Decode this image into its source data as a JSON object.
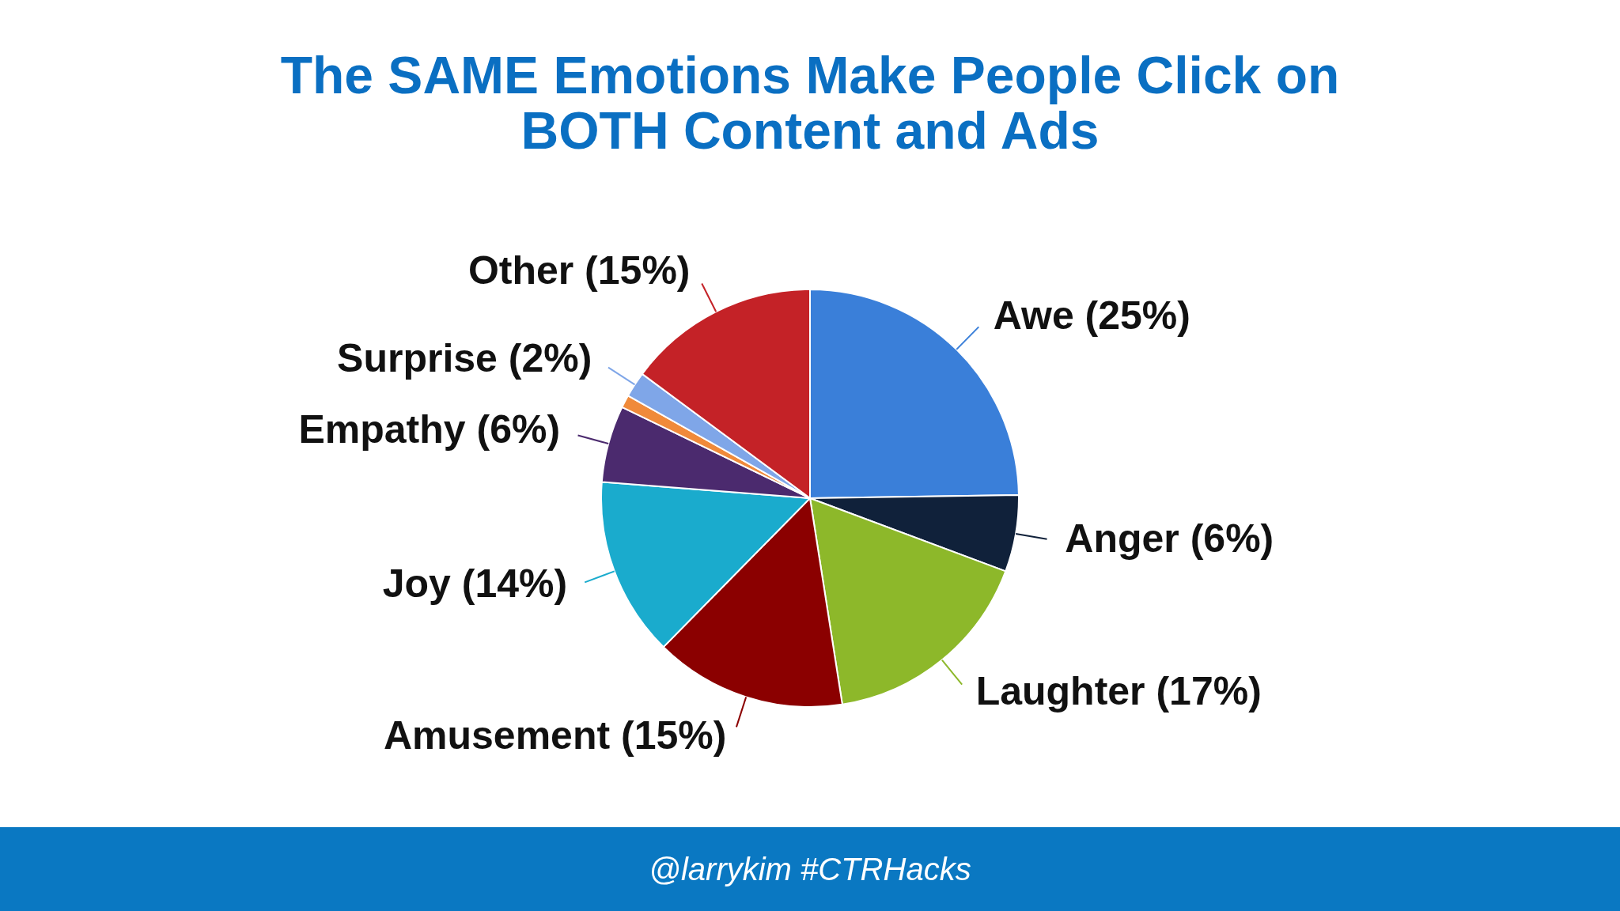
{
  "chart_data": {
    "type": "pie",
    "title": "The SAME Emotions Make People Click on BOTH Content and Ads",
    "categories": [
      "Awe (25%)",
      "Anger (6%)",
      "Laughter (17%)",
      "Amusement (15%)",
      "Joy (14%)",
      "Empathy (6%)",
      null,
      "Surprise (2%)",
      "Other (15%)"
    ],
    "values": [
      25,
      6,
      17,
      15,
      14,
      6,
      1,
      2,
      15
    ],
    "colors": [
      "#3a7fd9",
      "#10213a",
      "#8db82a",
      "#8b0000",
      "#1aabcd",
      "#4b2a6e",
      "#f08a3a",
      "#7fa6e8",
      "#c42227"
    ],
    "legend": false,
    "annotations": [
      "@larrykim #CTRHacks"
    ]
  }
}
